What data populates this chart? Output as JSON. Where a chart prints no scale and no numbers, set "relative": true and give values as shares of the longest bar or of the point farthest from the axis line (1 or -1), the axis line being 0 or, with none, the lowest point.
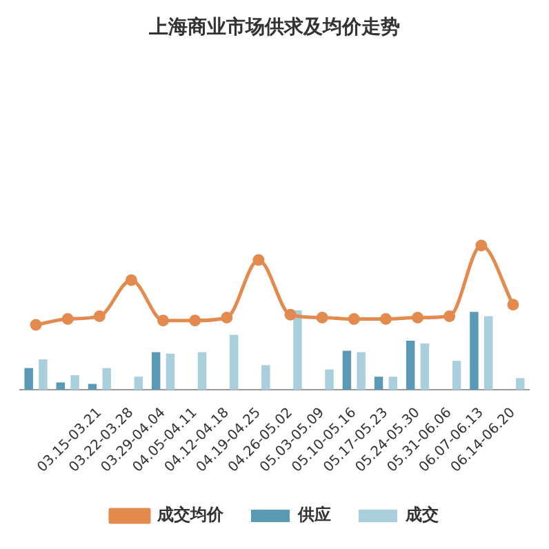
{
  "chart_data": {
    "type": "bar",
    "title": "上海商业市场供求及均价走势",
    "relative": true,
    "legend": "bottom",
    "grid": false,
    "categories": [
      null,
      null,
      "03.15-03.21",
      "03.22-03.28",
      "03.29-04.04",
      "04.05-04.11",
      "04.12-04.18",
      "04.19-04.25",
      "04.26-05.02",
      "05.03-05.09",
      "05.10-05.16",
      "05.17-05.23",
      "05.24-05.30",
      "05.31-06.06",
      "06.07-06.13",
      "06.14-06.20"
    ],
    "series": [
      {
        "name": "供应",
        "color": "#5b9ab4",
        "values": [
          0.15,
          0.05,
          0.04,
          null,
          0.26,
          null,
          null,
          null,
          null,
          null,
          0.27,
          0.09,
          0.34,
          null,
          0.54,
          null
        ]
      },
      {
        "name": "成交",
        "color": "#a9cfdd",
        "values": [
          0.21,
          0.1,
          0.15,
          0.09,
          0.25,
          0.26,
          0.38,
          0.17,
          0.55,
          0.14,
          0.26,
          0.09,
          0.32,
          0.2,
          0.51,
          0.08
        ]
      },
      {
        "name": "成交均价",
        "type": "line",
        "marker": "circle",
        "color": "#e38a4f",
        "values": [
          0.45,
          0.49,
          0.51,
          0.76,
          0.48,
          0.48,
          0.5,
          0.9,
          0.52,
          0.5,
          0.49,
          0.49,
          0.5,
          0.51,
          1,
          0.59
        ]
      }
    ]
  }
}
